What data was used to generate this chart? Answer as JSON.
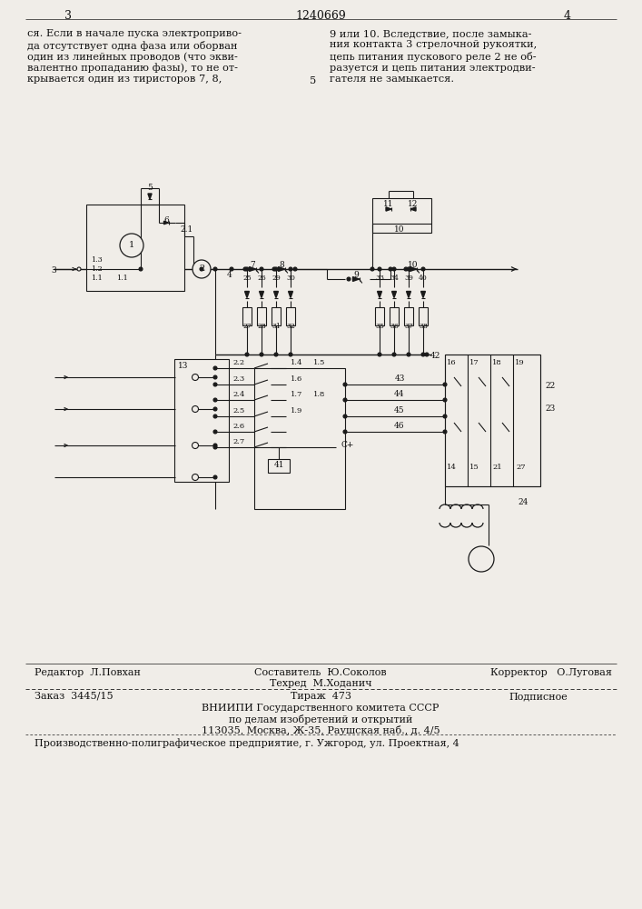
{
  "page_bg": "#f0ede8",
  "header_page_left": "3",
  "header_center": "1240669",
  "header_page_right": "4",
  "col1_lines": [
    "ся. Если в начале пуска электроприво-",
    "да отсутствует одна фаза или оборван",
    "один из линейных проводов (что экви-",
    "валентно пропаданию фазы), то не от-",
    "крывается один из тиристоров 7, 8,"
  ],
  "col2_lines": [
    "9 или 10. Вследствие, после замыка-",
    "ния контакта 3 стрелочной рукоятки,",
    "цепь питания пускового реле 2 не об-",
    "разуется и цепь питания электродви-",
    "гателя не замыкается."
  ],
  "line_number": "5",
  "footer_editor": "Редактор  Л.Повхан",
  "footer_compiler": "Составитель  Ю.Соколов",
  "footer_corrector": "Корректор   О.Луговая",
  "footer_techred": "Техред  М.Ходанич",
  "footer_order": "Заказ  3445/15",
  "footer_tiraj": "Тираж  473",
  "footer_podpis": "Подписное",
  "footer_org1": "ВНИИПИ Государственного комитета СССР",
  "footer_org2": "по делам изобретений и открытий",
  "footer_org3": "113035, Москва, Ж-35, Раушская наб., д. 4/5",
  "footer_prod": "Производственно-полиграфическое предприятие, г. Ужгород, ул. Проектная, 4",
  "tc": "#111111",
  "lc": "#1a1a1a"
}
